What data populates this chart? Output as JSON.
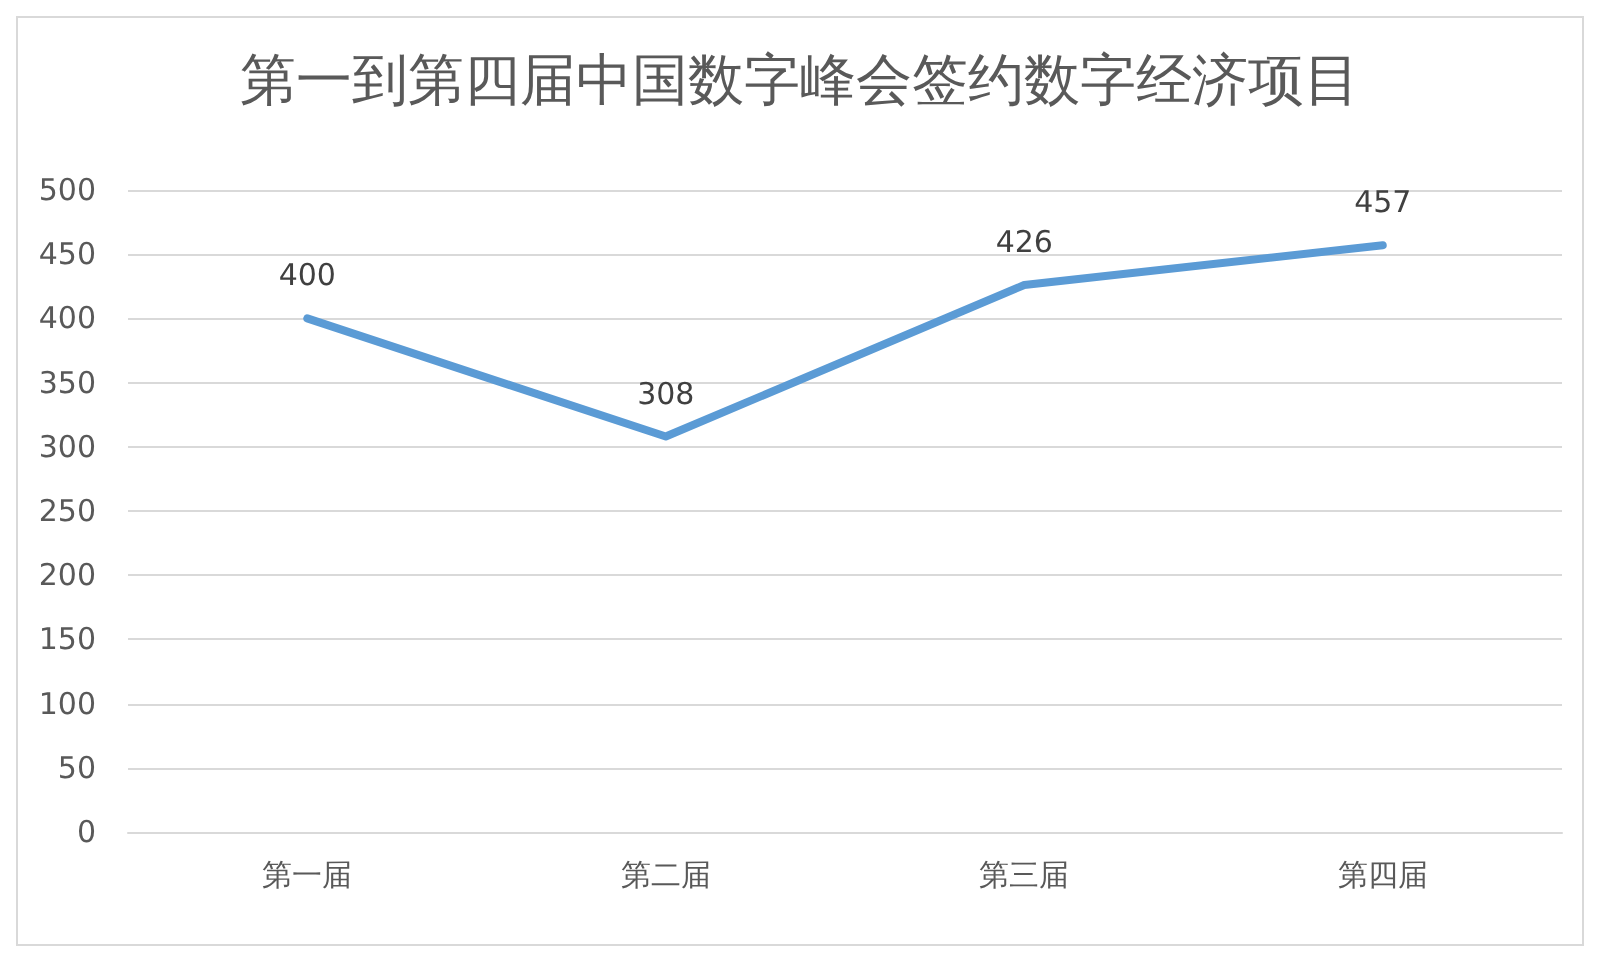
{
  "chart_data": {
    "type": "line",
    "title": "第一到第四届中国数字峰会签约数字经济项目",
    "categories": [
      "第一届",
      "第二届",
      "第三届",
      "第四届"
    ],
    "series": [
      {
        "color": "#5b9bd5",
        "values": [
          400,
          308,
          426,
          457
        ]
      }
    ],
    "ylim": [
      0,
      500
    ],
    "yticks": [
      0,
      50,
      100,
      150,
      200,
      250,
      300,
      350,
      400,
      450,
      500
    ],
    "grid": "y",
    "data_labels": true,
    "marker": "none",
    "line_style": "solid"
  }
}
